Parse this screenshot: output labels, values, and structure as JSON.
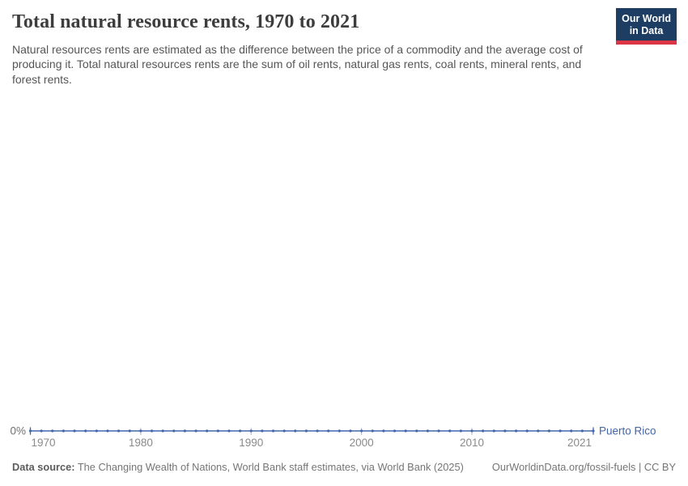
{
  "header": {
    "title": "Total natural resource rents, 1970 to 2021",
    "subtitle": "Natural resources rents are estimated as the difference between the price of a commodity and the average cost of producing it. Total natural resources rents are the sum of oil rents, natural gas rents, coal rents, mineral rents, and forest rents.",
    "logo": {
      "line1": "Our World",
      "line2": "in Data"
    }
  },
  "colors": {
    "line_blue": "#4266a9",
    "logo_navy": "#1d3d63",
    "logo_red": "#dc3545",
    "axis_tick": "#a9b3c4",
    "axis_label": "#8a8a8a",
    "y_label": "#707070"
  },
  "chart_data": {
    "type": "line",
    "title": "Total natural resource rents, 1970 to 2021",
    "xlim": [
      1970,
      2021
    ],
    "ylim": [
      0,
      0
    ],
    "grid": false,
    "legend_position": "right-of-line",
    "x_ticks": [
      1970,
      1980,
      1990,
      2000,
      2010,
      2021
    ],
    "x_tick_labels": [
      "1970",
      "1980",
      "1990",
      "2000",
      "2010",
      "2021"
    ],
    "y_ticks": [
      0
    ],
    "y_tick_labels": [
      "0%"
    ],
    "series": [
      {
        "name": "Puerto Rico",
        "color": "#4266a9",
        "x": [
          1970,
          1971,
          1972,
          1973,
          1974,
          1975,
          1976,
          1977,
          1978,
          1979,
          1980,
          1981,
          1982,
          1983,
          1984,
          1985,
          1986,
          1987,
          1988,
          1989,
          1990,
          1991,
          1992,
          1993,
          1994,
          1995,
          1996,
          1997,
          1998,
          1999,
          2000,
          2001,
          2002,
          2003,
          2004,
          2005,
          2006,
          2007,
          2008,
          2009,
          2010,
          2011,
          2012,
          2013,
          2014,
          2015,
          2016,
          2017,
          2018,
          2019,
          2020,
          2021
        ],
        "values": [
          0,
          0,
          0,
          0,
          0,
          0,
          0,
          0,
          0,
          0,
          0,
          0,
          0,
          0,
          0,
          0,
          0,
          0,
          0,
          0,
          0,
          0,
          0,
          0,
          0,
          0,
          0,
          0,
          0,
          0,
          0,
          0,
          0,
          0,
          0,
          0,
          0,
          0,
          0,
          0,
          0,
          0,
          0,
          0,
          0,
          0,
          0,
          0,
          0,
          0,
          0,
          0
        ]
      }
    ]
  },
  "footer": {
    "source_label": "Data source:",
    "source_text": " The Changing Wealth of Nations, World Bank staff estimates, via World Bank (2025)",
    "license_text": "OurWorldinData.org/fossil-fuels | CC BY"
  }
}
